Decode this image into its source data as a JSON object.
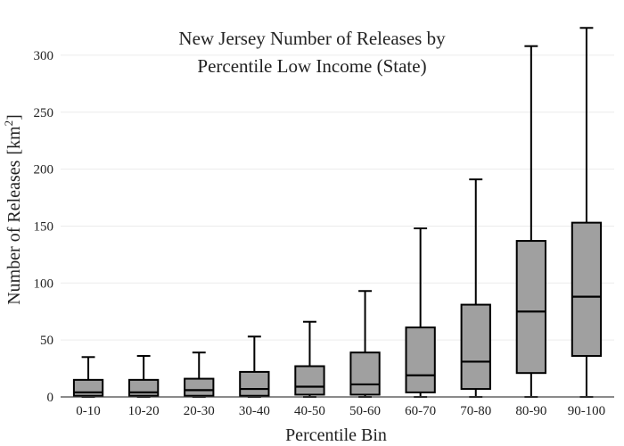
{
  "chart_data": {
    "type": "box",
    "title_line1": "New Jersey Number of Releases by",
    "title_line2": "Percentile Low Income (State)",
    "xlabel": "Percentile Bin",
    "ylabel_main": "Number of Releases",
    "ylabel_unit_open": "[km",
    "ylabel_unit_sup": "2",
    "ylabel_unit_close": "]",
    "ylim": [
      0,
      325
    ],
    "yticks": [
      0,
      50,
      100,
      150,
      200,
      250,
      300
    ],
    "grid": true,
    "box_color": "#a0a0a0",
    "categories": [
      "0-10",
      "10-20",
      "20-30",
      "30-40",
      "40-50",
      "50-60",
      "60-70",
      "70-80",
      "80-90",
      "90-100"
    ],
    "boxes": [
      {
        "min": 0,
        "q1": 1,
        "median": 4,
        "q3": 15,
        "max": 35
      },
      {
        "min": 0,
        "q1": 1,
        "median": 4,
        "q3": 15,
        "max": 36
      },
      {
        "min": 0,
        "q1": 1,
        "median": 6,
        "q3": 16,
        "max": 39
      },
      {
        "min": 0,
        "q1": 1,
        "median": 7,
        "q3": 22,
        "max": 53
      },
      {
        "min": 0,
        "q1": 2,
        "median": 9,
        "q3": 27,
        "max": 66
      },
      {
        "min": 0,
        "q1": 2,
        "median": 11,
        "q3": 39,
        "max": 93
      },
      {
        "min": 0,
        "q1": 4,
        "median": 19,
        "q3": 61,
        "max": 148
      },
      {
        "min": 0,
        "q1": 7,
        "median": 31,
        "q3": 81,
        "max": 191
      },
      {
        "min": 0,
        "q1": 21,
        "median": 75,
        "q3": 137,
        "max": 308
      },
      {
        "min": 0,
        "q1": 36,
        "median": 88,
        "q3": 153,
        "max": 324
      }
    ]
  }
}
